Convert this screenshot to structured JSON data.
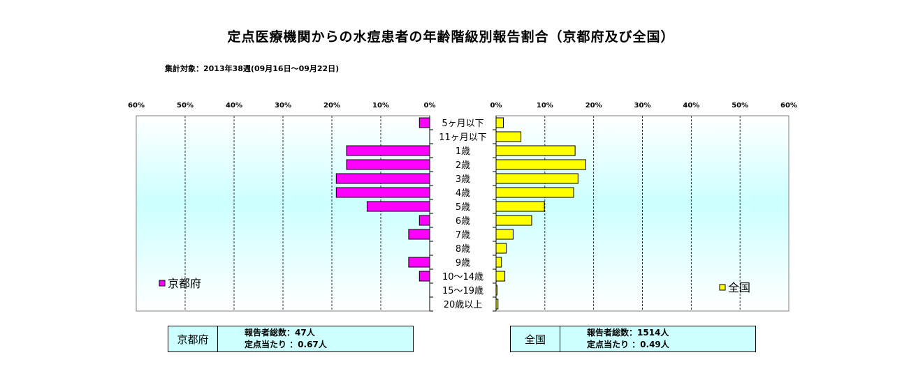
{
  "title": "定点医療機関からの水痘患者の年齢階級別報告割合（京都府及び全国）",
  "subtitle": "集計対象：2013年38週(09月16日～09月22日)",
  "chart_data": {
    "type": "bar",
    "orientation": "horizontal-pyramid",
    "categories": [
      "5ヶ月以下",
      "11ヶ月以下",
      "1歳",
      "2歳",
      "3歳",
      "4歳",
      "5歳",
      "6歳",
      "7歳",
      "8歳",
      "9歳",
      "10～14歳",
      "15～19歳",
      "20歳以上"
    ],
    "axis_ticks": [
      "0%",
      "10%",
      "20%",
      "30%",
      "40%",
      "50%",
      "60%"
    ],
    "xlim": [
      0,
      60
    ],
    "series": [
      {
        "name": "京都府",
        "color": "#ff00ff",
        "values": [
          2.1,
          0,
          17.0,
          17.0,
          19.1,
          19.1,
          12.8,
          2.1,
          4.3,
          0,
          4.3,
          2.1,
          0,
          0
        ]
      },
      {
        "name": "全国",
        "color": "#ffff00",
        "values": [
          1.5,
          5.1,
          16.2,
          18.4,
          16.8,
          15.9,
          9.9,
          7.3,
          3.5,
          2.1,
          1.1,
          1.8,
          0.2,
          0.4
        ]
      }
    ],
    "grid": true
  },
  "info_boxes": [
    {
      "name": "京都府",
      "reporters": "報告者総数：47人",
      "per_point": "定点当たり ：0.67人"
    },
    {
      "name": "全国",
      "reporters": "報告者総数：1514人",
      "per_point": "定点当たり ：0.49人"
    }
  ]
}
